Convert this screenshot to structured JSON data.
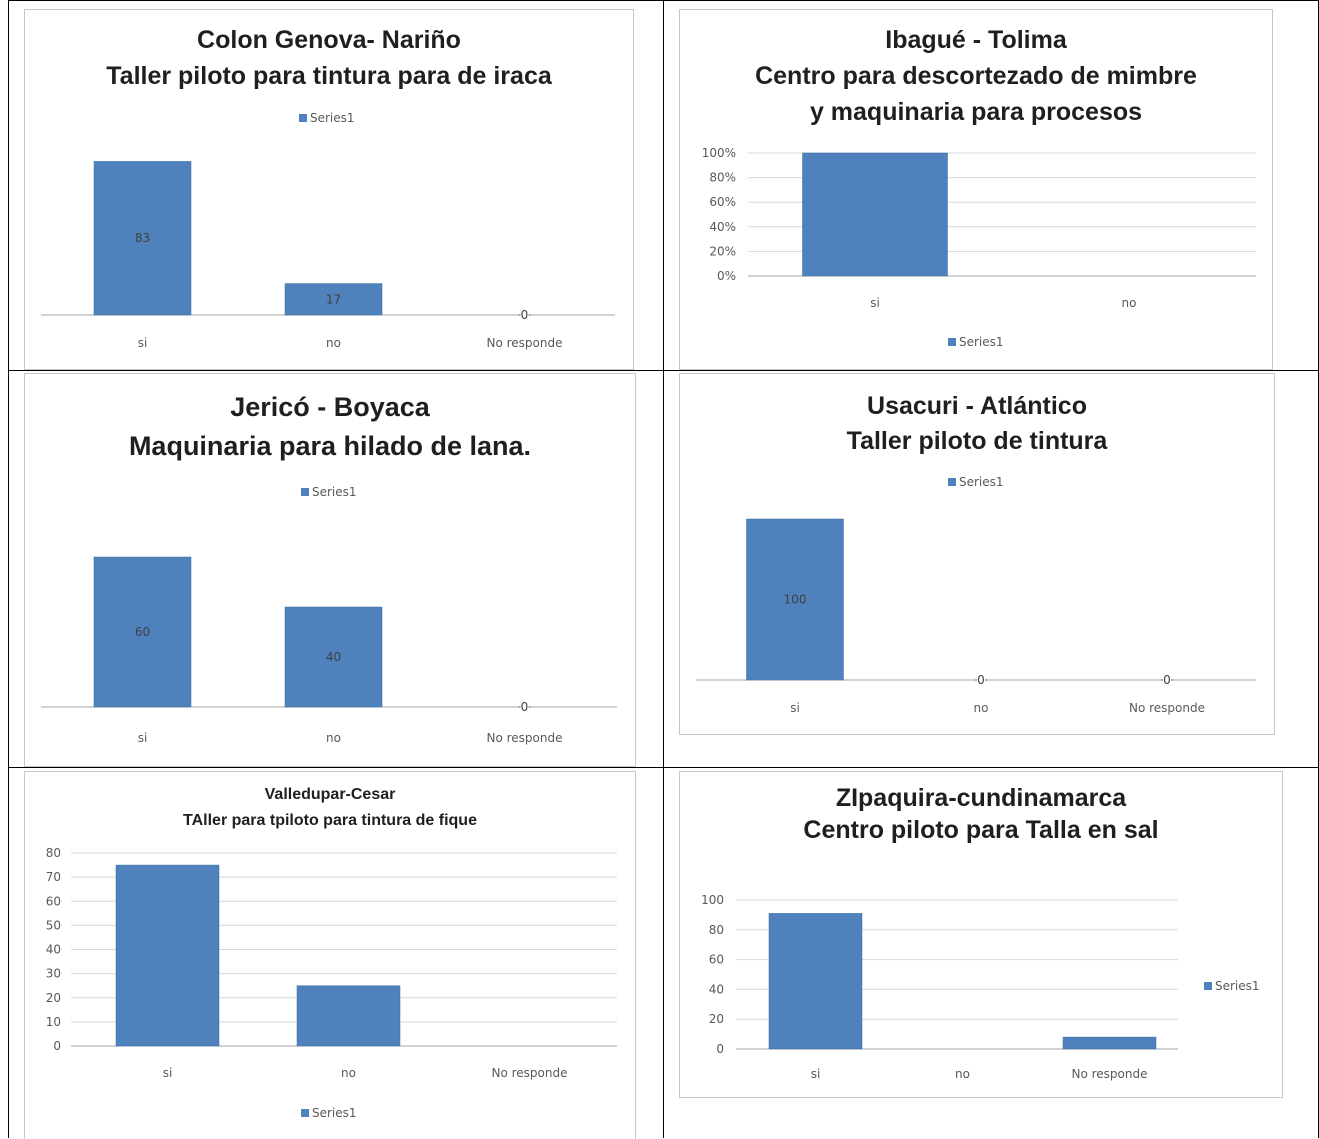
{
  "colors": {
    "bar": "#4f81bd",
    "bar_edge": "#3a6ea5",
    "grid": "#d9d9d9",
    "axis": "#a6a6a6"
  },
  "chart_data": [
    {
      "type": "bar",
      "title_lines": [
        "Colon Genova- Nariño",
        "Taller piloto para tintura para de iraca"
      ],
      "categories": [
        "si",
        "no",
        "No responde"
      ],
      "series": [
        {
          "name": "Series1",
          "values": [
            83,
            17,
            0
          ]
        }
      ],
      "data_labels": [
        "83",
        "17",
        "0"
      ],
      "legend": "top",
      "show_value_axis": false,
      "grid": false,
      "ylim": [
        0,
        100
      ]
    },
    {
      "type": "bar",
      "title_lines": [
        "Ibagué - Tolima",
        "Centro para descortezado  de mimbre",
        "y maquinaria para procesos"
      ],
      "categories": [
        "si",
        "no"
      ],
      "series": [
        {
          "name": "Series1",
          "values": [
            100,
            0
          ]
        }
      ],
      "y_ticks": [
        "0%",
        "20%",
        "40%",
        "60%",
        "80%",
        "100%"
      ],
      "legend": "bottom",
      "show_value_axis": true,
      "grid": true,
      "ylim": [
        0,
        100
      ]
    },
    {
      "type": "bar",
      "title_lines": [
        "Jericó - Boyaca",
        "Maquinaria para hilado de lana."
      ],
      "categories": [
        "si",
        "no",
        "No responde"
      ],
      "series": [
        {
          "name": "Series1",
          "values": [
            60,
            40,
            0
          ]
        }
      ],
      "data_labels": [
        "60",
        "40",
        "0"
      ],
      "legend": "top",
      "show_value_axis": false,
      "grid": false,
      "ylim": [
        0,
        60
      ]
    },
    {
      "type": "bar",
      "title_lines": [
        "Usacuri - Atlántico",
        "Taller piloto de tintura"
      ],
      "categories": [
        "si",
        "no",
        "No responde"
      ],
      "series": [
        {
          "name": "Series1",
          "values": [
            100,
            0,
            0
          ]
        }
      ],
      "data_labels": [
        "100",
        "0",
        "0"
      ],
      "legend": "top",
      "show_value_axis": false,
      "grid": false,
      "ylim": [
        0,
        100
      ]
    },
    {
      "type": "bar",
      "title_lines": [
        "Valledupar-Cesar",
        "TAller para tpiloto para tintura de fique"
      ],
      "categories": [
        "si",
        "no",
        "No responde"
      ],
      "series": [
        {
          "name": "Series1",
          "values": [
            75,
            25,
            0
          ]
        }
      ],
      "y_ticks": [
        "0",
        "10",
        "20",
        "30",
        "40",
        "50",
        "60",
        "70",
        "80"
      ],
      "legend": "bottom",
      "show_value_axis": true,
      "grid": true,
      "ylim": [
        0,
        80
      ]
    },
    {
      "type": "bar",
      "title_lines": [
        "ZIpaquira-cundinamarca",
        "Centro piloto para Talla en sal"
      ],
      "categories": [
        "si",
        "no",
        "No responde"
      ],
      "series": [
        {
          "name": "Series1",
          "values": [
            91,
            0,
            8
          ]
        }
      ],
      "y_ticks": [
        "0",
        "20",
        "40",
        "60",
        "80",
        "100"
      ],
      "legend": "right",
      "show_value_axis": true,
      "grid": true,
      "ylim": [
        0,
        100
      ]
    }
  ]
}
